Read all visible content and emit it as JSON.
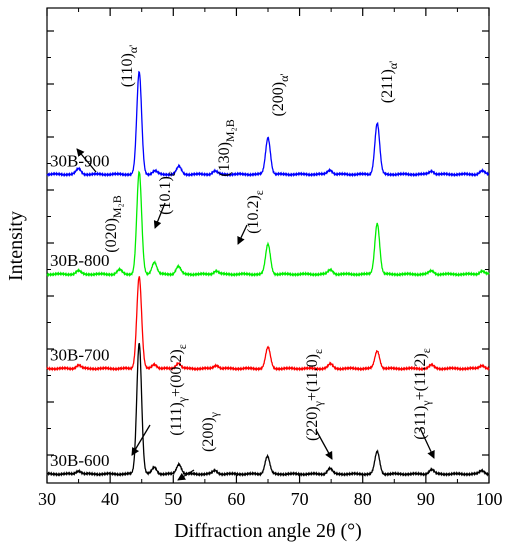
{
  "chart_data": {
    "type": "line",
    "xlabel": "Diffraction angle 2θ (°)",
    "ylabel": "Intensity",
    "xlim": [
      30,
      100
    ],
    "xticks": [
      30,
      40,
      50,
      60,
      70,
      80,
      90,
      100
    ],
    "y_tick_labels": "none",
    "grid": false,
    "legend": "none",
    "series": [
      {
        "name": "30B-900",
        "color": "#0000ff",
        "base": 2.7,
        "peaks": [
          {
            "x": 35.0,
            "h": 0.05
          },
          {
            "x": 44.6,
            "h": 0.92
          },
          {
            "x": 47.1,
            "h": 0.03
          },
          {
            "x": 50.9,
            "h": 0.07
          },
          {
            "x": 56.6,
            "h": 0.03
          },
          {
            "x": 65.0,
            "h": 0.33
          },
          {
            "x": 74.8,
            "h": 0.04
          },
          {
            "x": 82.3,
            "h": 0.46
          },
          {
            "x": 90.9,
            "h": 0.03
          },
          {
            "x": 98.9,
            "h": 0.03
          }
        ]
      },
      {
        "name": "30B-800",
        "color": "#00ee00",
        "base": 1.8,
        "peaks": [
          {
            "x": 35.0,
            "h": 0.03
          },
          {
            "x": 41.5,
            "h": 0.04
          },
          {
            "x": 44.6,
            "h": 0.92
          },
          {
            "x": 47.0,
            "h": 0.11
          },
          {
            "x": 50.8,
            "h": 0.07
          },
          {
            "x": 56.8,
            "h": 0.03
          },
          {
            "x": 65.0,
            "h": 0.27
          },
          {
            "x": 74.9,
            "h": 0.04
          },
          {
            "x": 82.3,
            "h": 0.46
          },
          {
            "x": 90.9,
            "h": 0.03
          },
          {
            "x": 98.9,
            "h": 0.03
          }
        ]
      },
      {
        "name": "30B-700",
        "color": "#ff0000",
        "base": 0.95,
        "peaks": [
          {
            "x": 35.0,
            "h": 0.03
          },
          {
            "x": 44.6,
            "h": 0.83
          },
          {
            "x": 47.0,
            "h": 0.04
          },
          {
            "x": 50.8,
            "h": 0.05
          },
          {
            "x": 56.8,
            "h": 0.03
          },
          {
            "x": 65.0,
            "h": 0.19
          },
          {
            "x": 74.9,
            "h": 0.04
          },
          {
            "x": 82.3,
            "h": 0.16
          },
          {
            "x": 90.9,
            "h": 0.03
          },
          {
            "x": 98.9,
            "h": 0.03
          }
        ]
      },
      {
        "name": "30B-600",
        "color": "#000000",
        "base": 0.0,
        "peaks": [
          {
            "x": 35.0,
            "h": 0.03
          },
          {
            "x": 44.6,
            "h": 1.18
          },
          {
            "x": 47.0,
            "h": 0.06
          },
          {
            "x": 50.9,
            "h": 0.09
          },
          {
            "x": 56.6,
            "h": 0.03
          },
          {
            "x": 64.9,
            "h": 0.16
          },
          {
            "x": 74.8,
            "h": 0.05
          },
          {
            "x": 82.3,
            "h": 0.2
          },
          {
            "x": 90.9,
            "h": 0.04
          },
          {
            "x": 98.9,
            "h": 0.03
          }
        ]
      }
    ],
    "annotations": [
      {
        "text": "(110)",
        "sub": "α'"
      },
      {
        "text": "(130)",
        "sub": "M₂B"
      },
      {
        "text": "(200)",
        "sub": "α'"
      },
      {
        "text": "(211)",
        "sub": "α'"
      },
      {
        "text": "(020)",
        "sub": "M₂B"
      },
      {
        "text": "(10.1)",
        "sub": "ε"
      },
      {
        "text": "(10.2)",
        "sub": "ε"
      },
      {
        "text": "(111)",
        "sub": "γ",
        "text2": "+(00.2)",
        "sub2": "ε"
      },
      {
        "text": "(200)",
        "sub": "γ"
      },
      {
        "text": "(220)",
        "sub": "γ",
        "text2": "+(11.0)",
        "sub2": "ε"
      },
      {
        "text": "(311)",
        "sub": "γ",
        "text2": "+(11.2)",
        "sub2": "ε"
      }
    ]
  }
}
